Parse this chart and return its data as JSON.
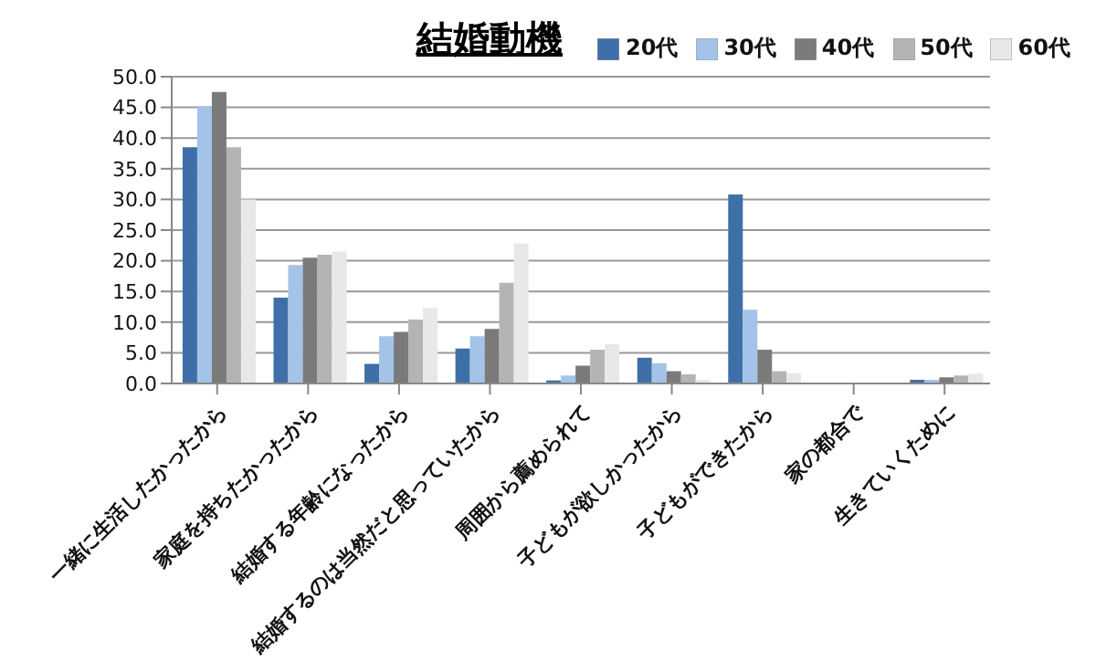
{
  "chart_data": {
    "type": "bar",
    "title": "結婚動機",
    "categories": [
      "一緒に生活したかったから",
      "家庭を持ちたかったから",
      "結婚する年齢になったから",
      "結婚するのは当然だと思っていたから",
      "周囲から薦められて",
      "子どもが欲しかったから",
      "子どもができたから",
      "家の都合で",
      "生きていくために"
    ],
    "series": [
      {
        "name": "20代",
        "color": "#3f6fa8",
        "values": [
          38.5,
          14.0,
          3.2,
          5.7,
          0.5,
          4.2,
          30.8,
          null,
          0.6
        ]
      },
      {
        "name": "30代",
        "color": "#a3c3e8",
        "values": [
          45.2,
          19.3,
          7.7,
          7.7,
          1.3,
          3.3,
          12.0,
          null,
          0.6
        ]
      },
      {
        "name": "40代",
        "color": "#7a7a7a",
        "values": [
          47.5,
          20.5,
          8.4,
          8.9,
          2.9,
          2.0,
          5.5,
          null,
          1.0
        ]
      },
      {
        "name": "50代",
        "color": "#b4b4b4",
        "values": [
          38.5,
          21.0,
          10.4,
          16.4,
          5.5,
          1.5,
          2.0,
          null,
          1.3
        ]
      },
      {
        "name": "60代",
        "color": "#e8e8e8",
        "values": [
          30.0,
          21.5,
          12.3,
          22.8,
          6.4,
          0.6,
          1.7,
          null,
          1.6
        ]
      }
    ],
    "ylim": [
      0,
      50
    ],
    "yticks": [
      {
        "value": 0,
        "label": "0.0"
      },
      {
        "value": 5,
        "label": "5.0"
      },
      {
        "value": 10,
        "label": "10.0"
      },
      {
        "value": 15,
        "label": "15.0"
      },
      {
        "value": 20,
        "label": "20.0"
      },
      {
        "value": 25,
        "label": "25.0"
      },
      {
        "value": 30,
        "label": "30.0"
      },
      {
        "value": 35,
        "label": "35.0"
      },
      {
        "value": 40,
        "label": "40.0"
      },
      {
        "value": 45,
        "label": "45.0"
      },
      {
        "value": 50,
        "label": "50.0"
      }
    ],
    "grid": "y",
    "legend": "top right"
  }
}
